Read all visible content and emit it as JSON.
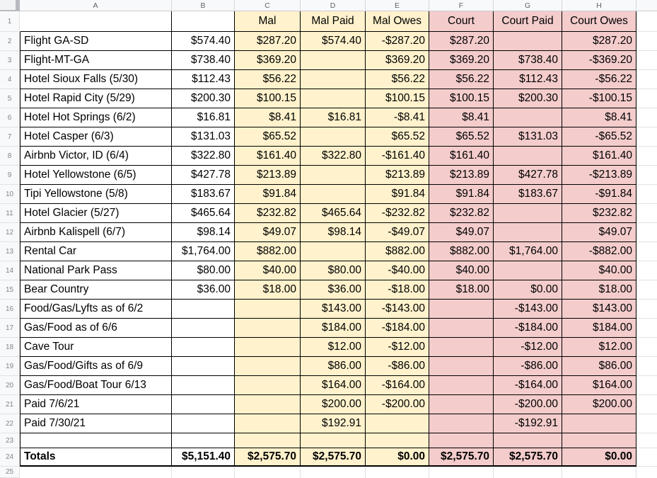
{
  "colors": {
    "mal_bg": "#fff2cc",
    "court_bg": "#f4cccc",
    "table_border": "#000000",
    "gridline": "#e2e2e2",
    "header_bg": "#f8f9fa",
    "header_text": "#5f6368"
  },
  "column_headers": [
    "A",
    "B",
    "C",
    "D",
    "E",
    "F",
    "G",
    "H"
  ],
  "row_numbers": [
    "1",
    "2",
    "3",
    "4",
    "5",
    "6",
    "7",
    "8",
    "9",
    "10",
    "11",
    "12",
    "13",
    "14",
    "15",
    "16",
    "17",
    "18",
    "19",
    "20",
    "21",
    "22",
    "23",
    "24",
    "25"
  ],
  "header_row": {
    "a": "",
    "b": "",
    "c": "Mal",
    "d": "Mal Paid",
    "e": "Mal Owes",
    "f": "Court",
    "g": "Court Paid",
    "h": "Court Owes"
  },
  "rows": [
    {
      "n": 2,
      "label": "Flight GA-SD",
      "b": "$574.40",
      "c": "$287.20",
      "d": "$574.40",
      "e": "-$287.20",
      "f": "$287.20",
      "g": "",
      "h": "$287.20"
    },
    {
      "n": 3,
      "label": "Flight-MT-GA",
      "b": "$738.40",
      "c": "$369.20",
      "d": "",
      "e": "$369.20",
      "f": "$369.20",
      "g": "$738.40",
      "h": "-$369.20"
    },
    {
      "n": 4,
      "label": "Hotel Sioux Falls (5/30)",
      "b": "$112.43",
      "c": "$56.22",
      "d": "",
      "e": "$56.22",
      "f": "$56.22",
      "g": "$112.43",
      "h": "-$56.22"
    },
    {
      "n": 5,
      "label": "Hotel Rapid City (5/29)",
      "b": "$200.30",
      "c": "$100.15",
      "d": "",
      "e": "$100.15",
      "f": "$100.15",
      "g": "$200.30",
      "h": "-$100.15"
    },
    {
      "n": 6,
      "label": "Hotel Hot Springs (6/2)",
      "b": "$16.81",
      "c": "$8.41",
      "d": "$16.81",
      "e": "-$8.41",
      "f": "$8.41",
      "g": "",
      "h": "$8.41"
    },
    {
      "n": 7,
      "label": "Hotel Casper (6/3)",
      "b": "$131.03",
      "c": "$65.52",
      "d": "",
      "e": "$65.52",
      "f": "$65.52",
      "g": "$131.03",
      "h": "-$65.52"
    },
    {
      "n": 8,
      "label": "Airbnb Victor, ID (6/4)",
      "b": "$322.80",
      "c": "$161.40",
      "d": "$322.80",
      "e": "-$161.40",
      "f": "$161.40",
      "g": "",
      "h": "$161.40"
    },
    {
      "n": 9,
      "label": "Hotel Yellowstone (6/5)",
      "b": "$427.78",
      "c": "$213.89",
      "d": "",
      "e": "$213.89",
      "f": "$213.89",
      "g": "$427.78",
      "h": "-$213.89"
    },
    {
      "n": 10,
      "label": "Tipi Yellowstone (5/8)",
      "b": "$183.67",
      "c": "$91.84",
      "d": "",
      "e": "$91.84",
      "f": "$91.84",
      "g": "$183.67",
      "h": "-$91.84"
    },
    {
      "n": 11,
      "label": "Hotel Glacier (5/27)",
      "b": "$465.64",
      "c": "$232.82",
      "d": "$465.64",
      "e": "-$232.82",
      "f": "$232.82",
      "g": "",
      "h": "$232.82"
    },
    {
      "n": 12,
      "label": "Airbnb Kalispell (6/7)",
      "b": "$98.14",
      "c": "$49.07",
      "d": "$98.14",
      "e": "-$49.07",
      "f": "$49.07",
      "g": "",
      "h": "$49.07"
    },
    {
      "n": 13,
      "label": "Rental Car",
      "b": "$1,764.00",
      "c": "$882.00",
      "d": "",
      "e": "$882.00",
      "f": "$882.00",
      "g": "$1,764.00",
      "h": "-$882.00"
    },
    {
      "n": 14,
      "label": "National Park Pass",
      "b": "$80.00",
      "c": "$40.00",
      "d": "$80.00",
      "e": "-$40.00",
      "f": "$40.00",
      "g": "",
      "h": "$40.00"
    },
    {
      "n": 15,
      "label": "Bear Country",
      "b": "$36.00",
      "c": "$18.00",
      "d": "$36.00",
      "e": "-$18.00",
      "f": "$18.00",
      "g": "$0.00",
      "h": "$18.00"
    },
    {
      "n": 16,
      "label": "Food/Gas/Lyfts as of 6/2",
      "b": "",
      "c": "",
      "d": "$143.00",
      "e": "-$143.00",
      "f": "",
      "g": "-$143.00",
      "h": "$143.00"
    },
    {
      "n": 17,
      "label": "Gas/Food as of 6/6",
      "b": "",
      "c": "",
      "d": "$184.00",
      "e": "-$184.00",
      "f": "",
      "g": "-$184.00",
      "h": "$184.00"
    },
    {
      "n": 18,
      "label": "Cave Tour",
      "b": "",
      "c": "",
      "d": "$12.00",
      "e": "-$12.00",
      "f": "",
      "g": "-$12.00",
      "h": "$12.00"
    },
    {
      "n": 19,
      "label": "Gas/Food/Gifts as of 6/9",
      "b": "",
      "c": "",
      "d": "$86.00",
      "e": "-$86.00",
      "f": "",
      "g": "-$86.00",
      "h": "$86.00"
    },
    {
      "n": 20,
      "label": "Gas/Food/Boat Tour 6/13",
      "b": "",
      "c": "",
      "d": "$164.00",
      "e": "-$164.00",
      "f": "",
      "g": "-$164.00",
      "h": "$164.00"
    },
    {
      "n": 21,
      "label": "Paid 7/6/21",
      "b": "",
      "c": "",
      "d": "$200.00",
      "e": "-$200.00",
      "f": "",
      "g": "-$200.00",
      "h": "$200.00"
    },
    {
      "n": 22,
      "label": "Paid 7/30/21",
      "b": "",
      "c": "",
      "d": "$192.91",
      "e": "",
      "f": "",
      "g": "-$192.91",
      "h": ""
    },
    {
      "n": 23,
      "label": "",
      "b": "",
      "c": "",
      "d": "",
      "e": "",
      "f": "",
      "g": "",
      "h": ""
    }
  ],
  "totals": {
    "label": "Totals",
    "b": "$5,151.40",
    "c": "$2,575.70",
    "d": "$2,575.70",
    "e": "$0.00",
    "f": "$2,575.70",
    "g": "$2,575.70",
    "h": "$0.00"
  }
}
